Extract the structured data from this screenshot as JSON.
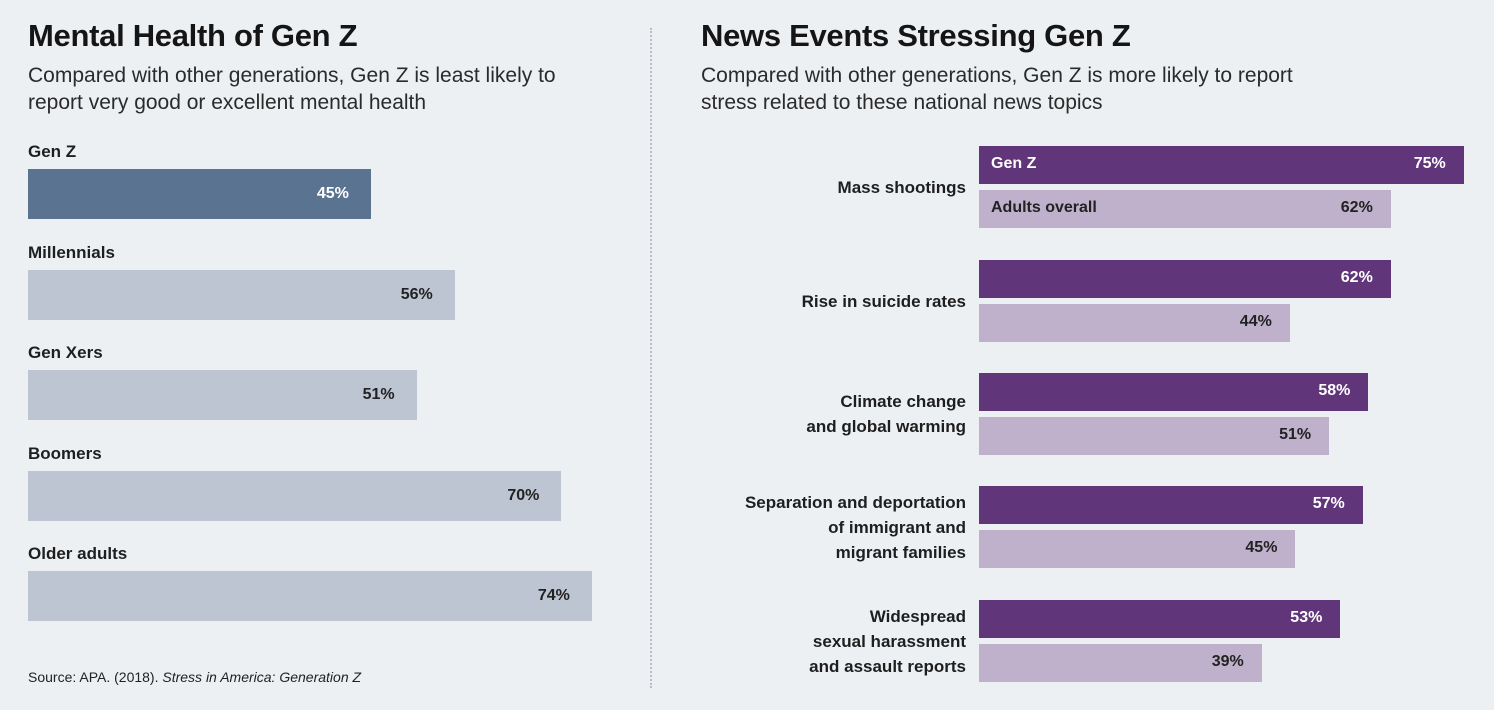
{
  "colors": {
    "background": "#edf0f3",
    "genz_left": "#5a7391",
    "other_left": "#bdc5d2",
    "genz_right": "#60357a",
    "adults_right": "#bfb1cb"
  },
  "chart_data": [
    {
      "type": "bar",
      "orientation": "horizontal",
      "title": "Mental Health of Gen Z",
      "subtitle": "Compared with other generations, Gen Z is least likely to report very good or excellent mental health",
      "categories": [
        "Gen Z",
        "Millennials",
        "Gen Xers",
        "Boomers",
        "Older adults"
      ],
      "values": [
        45,
        56,
        51,
        70,
        74
      ],
      "value_labels": [
        "45%",
        "56%",
        "51%",
        "70%",
        "74%"
      ],
      "unit": "%",
      "grid": false
    },
    {
      "type": "bar",
      "orientation": "horizontal",
      "title": "News Events Stressing Gen Z",
      "subtitle": "Compared with other generations, Gen Z is more likely to report stress related to these national news topics",
      "categories": [
        "Mass shootings",
        "Rise in suicide rates",
        "Climate change\nand global warming",
        "Separation and deportation\nof immigrant and\nmigrant families",
        "Widespread\nsexual harassment\nand assault reports"
      ],
      "series": [
        {
          "name": "Gen Z",
          "values": [
            75,
            62,
            58,
            57,
            53
          ],
          "value_labels": [
            "75%",
            "62%",
            "58%",
            "57%",
            "53%"
          ]
        },
        {
          "name": "Adults overall",
          "values": [
            62,
            44,
            51,
            45,
            39
          ],
          "value_labels": [
            "62%",
            "44%",
            "51%",
            "45%",
            "39%"
          ]
        }
      ],
      "unit": "%",
      "legend": "inline in first bar pair",
      "grid": false
    }
  ],
  "source": {
    "prefix": "Source: APA. (2018). ",
    "italic": "Stress in America: Generation Z"
  }
}
